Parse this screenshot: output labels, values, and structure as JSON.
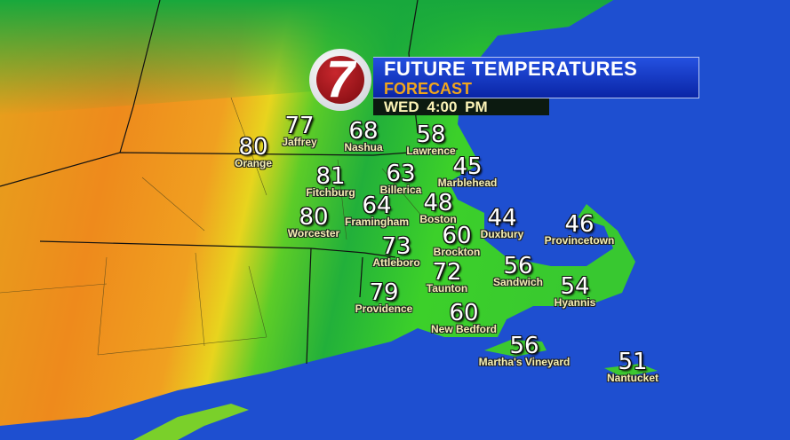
{
  "header": {
    "station_logo": "7",
    "title": "FUTURE TEMPERATURES",
    "subtitle": "FORECAST",
    "time": "WED 4:00 PM"
  },
  "colors": {
    "ocean": "#1e4fd0",
    "hot": "#f08a1a",
    "warm": "#e6d21a",
    "mild": "#2fc42a",
    "cool": "#19a858",
    "banner": "#1a3fcf",
    "subtitle": "#f0a51c"
  },
  "cities": [
    {
      "name": "Jaffrey",
      "temp": "77"
    },
    {
      "name": "Orange",
      "temp": "80"
    },
    {
      "name": "Nashua",
      "temp": "68"
    },
    {
      "name": "Lawrence",
      "temp": "58"
    },
    {
      "name": "Fitchburg",
      "temp": "81"
    },
    {
      "name": "Billerica",
      "temp": "63"
    },
    {
      "name": "Marblehead",
      "temp": "45"
    },
    {
      "name": "Framingham",
      "temp": "64"
    },
    {
      "name": "Boston",
      "temp": "48"
    },
    {
      "name": "Duxbury",
      "temp": "44"
    },
    {
      "name": "Worcester",
      "temp": "80"
    },
    {
      "name": "Provincetown",
      "temp": "46"
    },
    {
      "name": "Brockton",
      "temp": "60"
    },
    {
      "name": "Attleboro",
      "temp": "73"
    },
    {
      "name": "Sandwich",
      "temp": "56"
    },
    {
      "name": "Taunton",
      "temp": "72"
    },
    {
      "name": "Hyannis",
      "temp": "54"
    },
    {
      "name": "Providence",
      "temp": "79"
    },
    {
      "name": "New Bedford",
      "temp": "60"
    },
    {
      "name": "Martha's Vineyard",
      "temp": "56"
    },
    {
      "name": "Nantucket",
      "temp": "51"
    }
  ]
}
